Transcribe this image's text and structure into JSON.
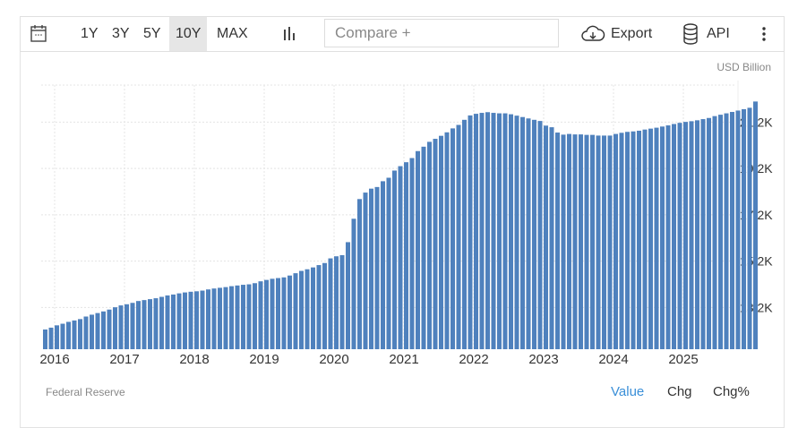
{
  "toolbar": {
    "calendar_icon": "calendar-icon",
    "ranges": [
      "1Y",
      "3Y",
      "5Y",
      "10Y",
      "MAX"
    ],
    "active_range": "10Y",
    "chart_type_icon": "bar-chart-icon",
    "compare_placeholder": "Compare +",
    "export_label": "Export",
    "export_icon": "cloud-download-icon",
    "api_label": "API",
    "api_icon": "database-icon",
    "more_icon": "vertical-dots-icon"
  },
  "footer": {
    "source": "Federal Reserve",
    "modes": [
      "Value",
      "Chg",
      "Chg%"
    ],
    "active_mode": "Value",
    "active_color": "#3a8fd8"
  },
  "chart_data": {
    "type": "bar",
    "unit_label": "USD Billion",
    "bar_color": "#4f81bd",
    "grid": true,
    "ylim": [
      11400,
      22800
    ],
    "y_ticks": [
      "13.2K",
      "15.2K",
      "17.2K",
      "19.2K",
      "21.2K"
    ],
    "y_tick_values": [
      13200,
      15200,
      17200,
      19200,
      21200
    ],
    "x_ticks": [
      "2016",
      "2017",
      "2018",
      "2019",
      "2020",
      "2021",
      "2022",
      "2023",
      "2024",
      "2025"
    ],
    "start_month": "2015-11",
    "frequency": "monthly",
    "values": [
      12250,
      12330,
      12430,
      12500,
      12580,
      12640,
      12700,
      12810,
      12890,
      12960,
      13030,
      13110,
      13210,
      13290,
      13340,
      13400,
      13480,
      13520,
      13560,
      13600,
      13660,
      13720,
      13760,
      13810,
      13850,
      13880,
      13900,
      13930,
      13980,
      14020,
      14050,
      14080,
      14120,
      14150,
      14180,
      14200,
      14250,
      14330,
      14390,
      14440,
      14470,
      14500,
      14580,
      14680,
      14780,
      14850,
      14930,
      15030,
      15120,
      15320,
      15410,
      15460,
      16020,
      17030,
      17880,
      18160,
      18330,
      18400,
      18650,
      18800,
      19110,
      19300,
      19470,
      19650,
      19950,
      20140,
      20350,
      20480,
      20610,
      20760,
      20930,
      21080,
      21300,
      21490,
      21560,
      21600,
      21630,
      21600,
      21580,
      21580,
      21540,
      21480,
      21420,
      21360,
      21300,
      21250,
      21050,
      20980,
      20750,
      20660,
      20690,
      20670,
      20670,
      20650,
      20650,
      20620,
      20620,
      20620,
      20690,
      20740,
      20780,
      20800,
      20830,
      20880,
      20920,
      20960,
      21010,
      21060,
      21120,
      21170,
      21210,
      21240,
      21280,
      21330,
      21380,
      21460,
      21520,
      21580,
      21640,
      21700,
      21760,
      21820,
      22090
    ]
  }
}
